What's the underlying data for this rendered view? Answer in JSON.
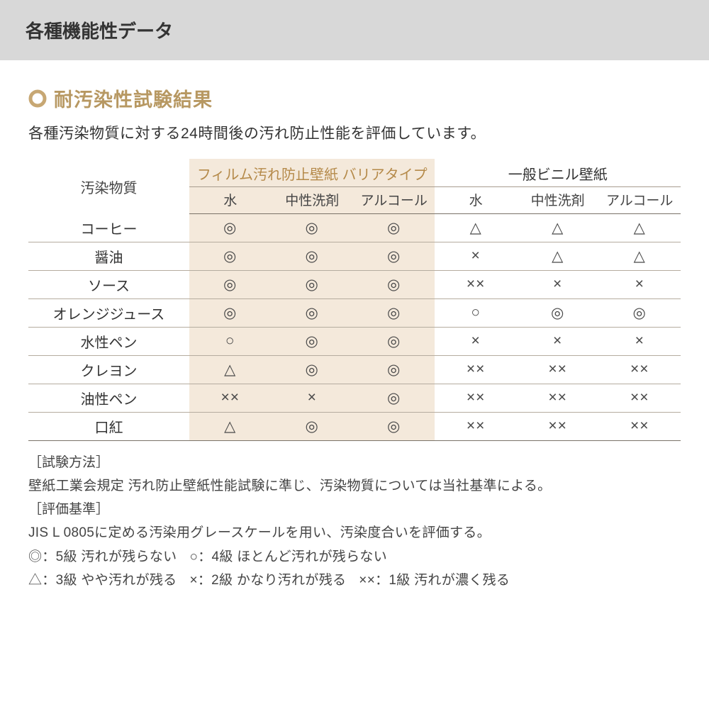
{
  "colors": {
    "header_bg": "#d8d8d8",
    "accent": "#b79862",
    "accent_text": "#b58a4a",
    "tint_bg": "#f4e9db",
    "rule": "#b5ac9f",
    "rule_heavy": "#7a7268",
    "body_text": "#3a3a3a"
  },
  "header": {
    "title": "各種機能性データ"
  },
  "section": {
    "title": "耐汚染性試験結果",
    "intro": "各種汚染物質に対する24時間後の汚れ防止性能を評価しています。"
  },
  "table": {
    "row_header": "汚染物質",
    "groups": [
      {
        "label": "フィルム汚れ防止壁紙 バリアタイプ",
        "tint": true
      },
      {
        "label": "一般ビニル壁紙",
        "tint": false
      }
    ],
    "sub_headers": [
      "水",
      "中性洗剤",
      "アルコール",
      "水",
      "中性洗剤",
      "アルコール"
    ],
    "rows": [
      {
        "label": "コーヒー",
        "cells": [
          "◎",
          "◎",
          "◎",
          "△",
          "△",
          "△"
        ]
      },
      {
        "label": "醤油",
        "cells": [
          "◎",
          "◎",
          "◎",
          "×",
          "△",
          "△"
        ]
      },
      {
        "label": "ソース",
        "cells": [
          "◎",
          "◎",
          "◎",
          "××",
          "×",
          "×"
        ]
      },
      {
        "label": "オレンジジュース",
        "cells": [
          "◎",
          "◎",
          "◎",
          "○",
          "◎",
          "◎"
        ]
      },
      {
        "label": "水性ペン",
        "cells": [
          "○",
          "◎",
          "◎",
          "×",
          "×",
          "×"
        ]
      },
      {
        "label": "クレヨン",
        "cells": [
          "△",
          "◎",
          "◎",
          "××",
          "××",
          "××"
        ]
      },
      {
        "label": "油性ペン",
        "cells": [
          "××",
          "×",
          "◎",
          "××",
          "××",
          "××"
        ]
      },
      {
        "label": "口紅",
        "cells": [
          "△",
          "◎",
          "◎",
          "××",
          "××",
          "××"
        ]
      }
    ]
  },
  "notes": {
    "method_tag": "［試験方法］",
    "method_body": "壁紙工業会規定 汚れ防止壁紙性能試験に準じ、汚染物質については当社基準による。",
    "criteria_tag": "［評価基準］",
    "criteria_body": "JIS L 0805に定める汚染用グレースケールを用い、汚染度合いを評価する。",
    "legend": [
      "◎：5級 汚れが残らない",
      "○：4級 ほとんど汚れが残らない",
      "△：3級 やや汚れが残る",
      "×：2級 かなり汚れが残る",
      "××：1級 汚れが濃く残る"
    ]
  }
}
